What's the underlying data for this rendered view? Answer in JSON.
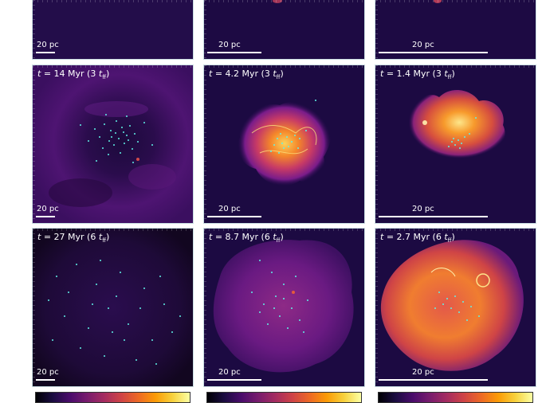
{
  "colors": {
    "background": "#1e0b45",
    "stars": "#5ff3e8",
    "scale_bar": "#ffffff"
  },
  "scale_bar_text": "20 pc",
  "rows": [
    {
      "panels": [
        {
          "time_label": "",
          "scale_label": "20 pc"
        },
        {
          "time_label": "",
          "scale_label": "20 pc"
        },
        {
          "time_label": "",
          "scale_label": "20 pc"
        }
      ]
    },
    {
      "panels": [
        {
          "time_label": "t = 14 Myr (3 t_ff)",
          "scale_label": "20 pc"
        },
        {
          "time_label": "t = 4.2 Myr (3 t_ff)",
          "scale_label": "20 pc"
        },
        {
          "time_label": "t = 1.4 Myr (3 t_ff)",
          "scale_label": "20 pc"
        }
      ]
    },
    {
      "panels": [
        {
          "time_label": "t = 27 Myr (6 t_ff)",
          "scale_label": "20 pc"
        },
        {
          "time_label": "t = 8.7 Myr (6 t_ff)",
          "scale_label": "20 pc"
        },
        {
          "time_label": "t = 2.7 Myr (6 t_ff)",
          "scale_label": "20 pc"
        }
      ]
    }
  ],
  "labels": {
    "r2c1_t": "t",
    "r2c1_val": "= 14 Myr (3",
    "r2c2_val": "= 4.2 Myr (3",
    "r2c3_val": "= 1.4 Myr (3",
    "r3c1_val": "= 27 Myr (6",
    "r3c2_val": "= 8.7 Myr (6",
    "r3c3_val": "= 2.7 Myr (6",
    "tff_sym": "t",
    "tff_sub": "ff",
    "close_paren": ")"
  }
}
